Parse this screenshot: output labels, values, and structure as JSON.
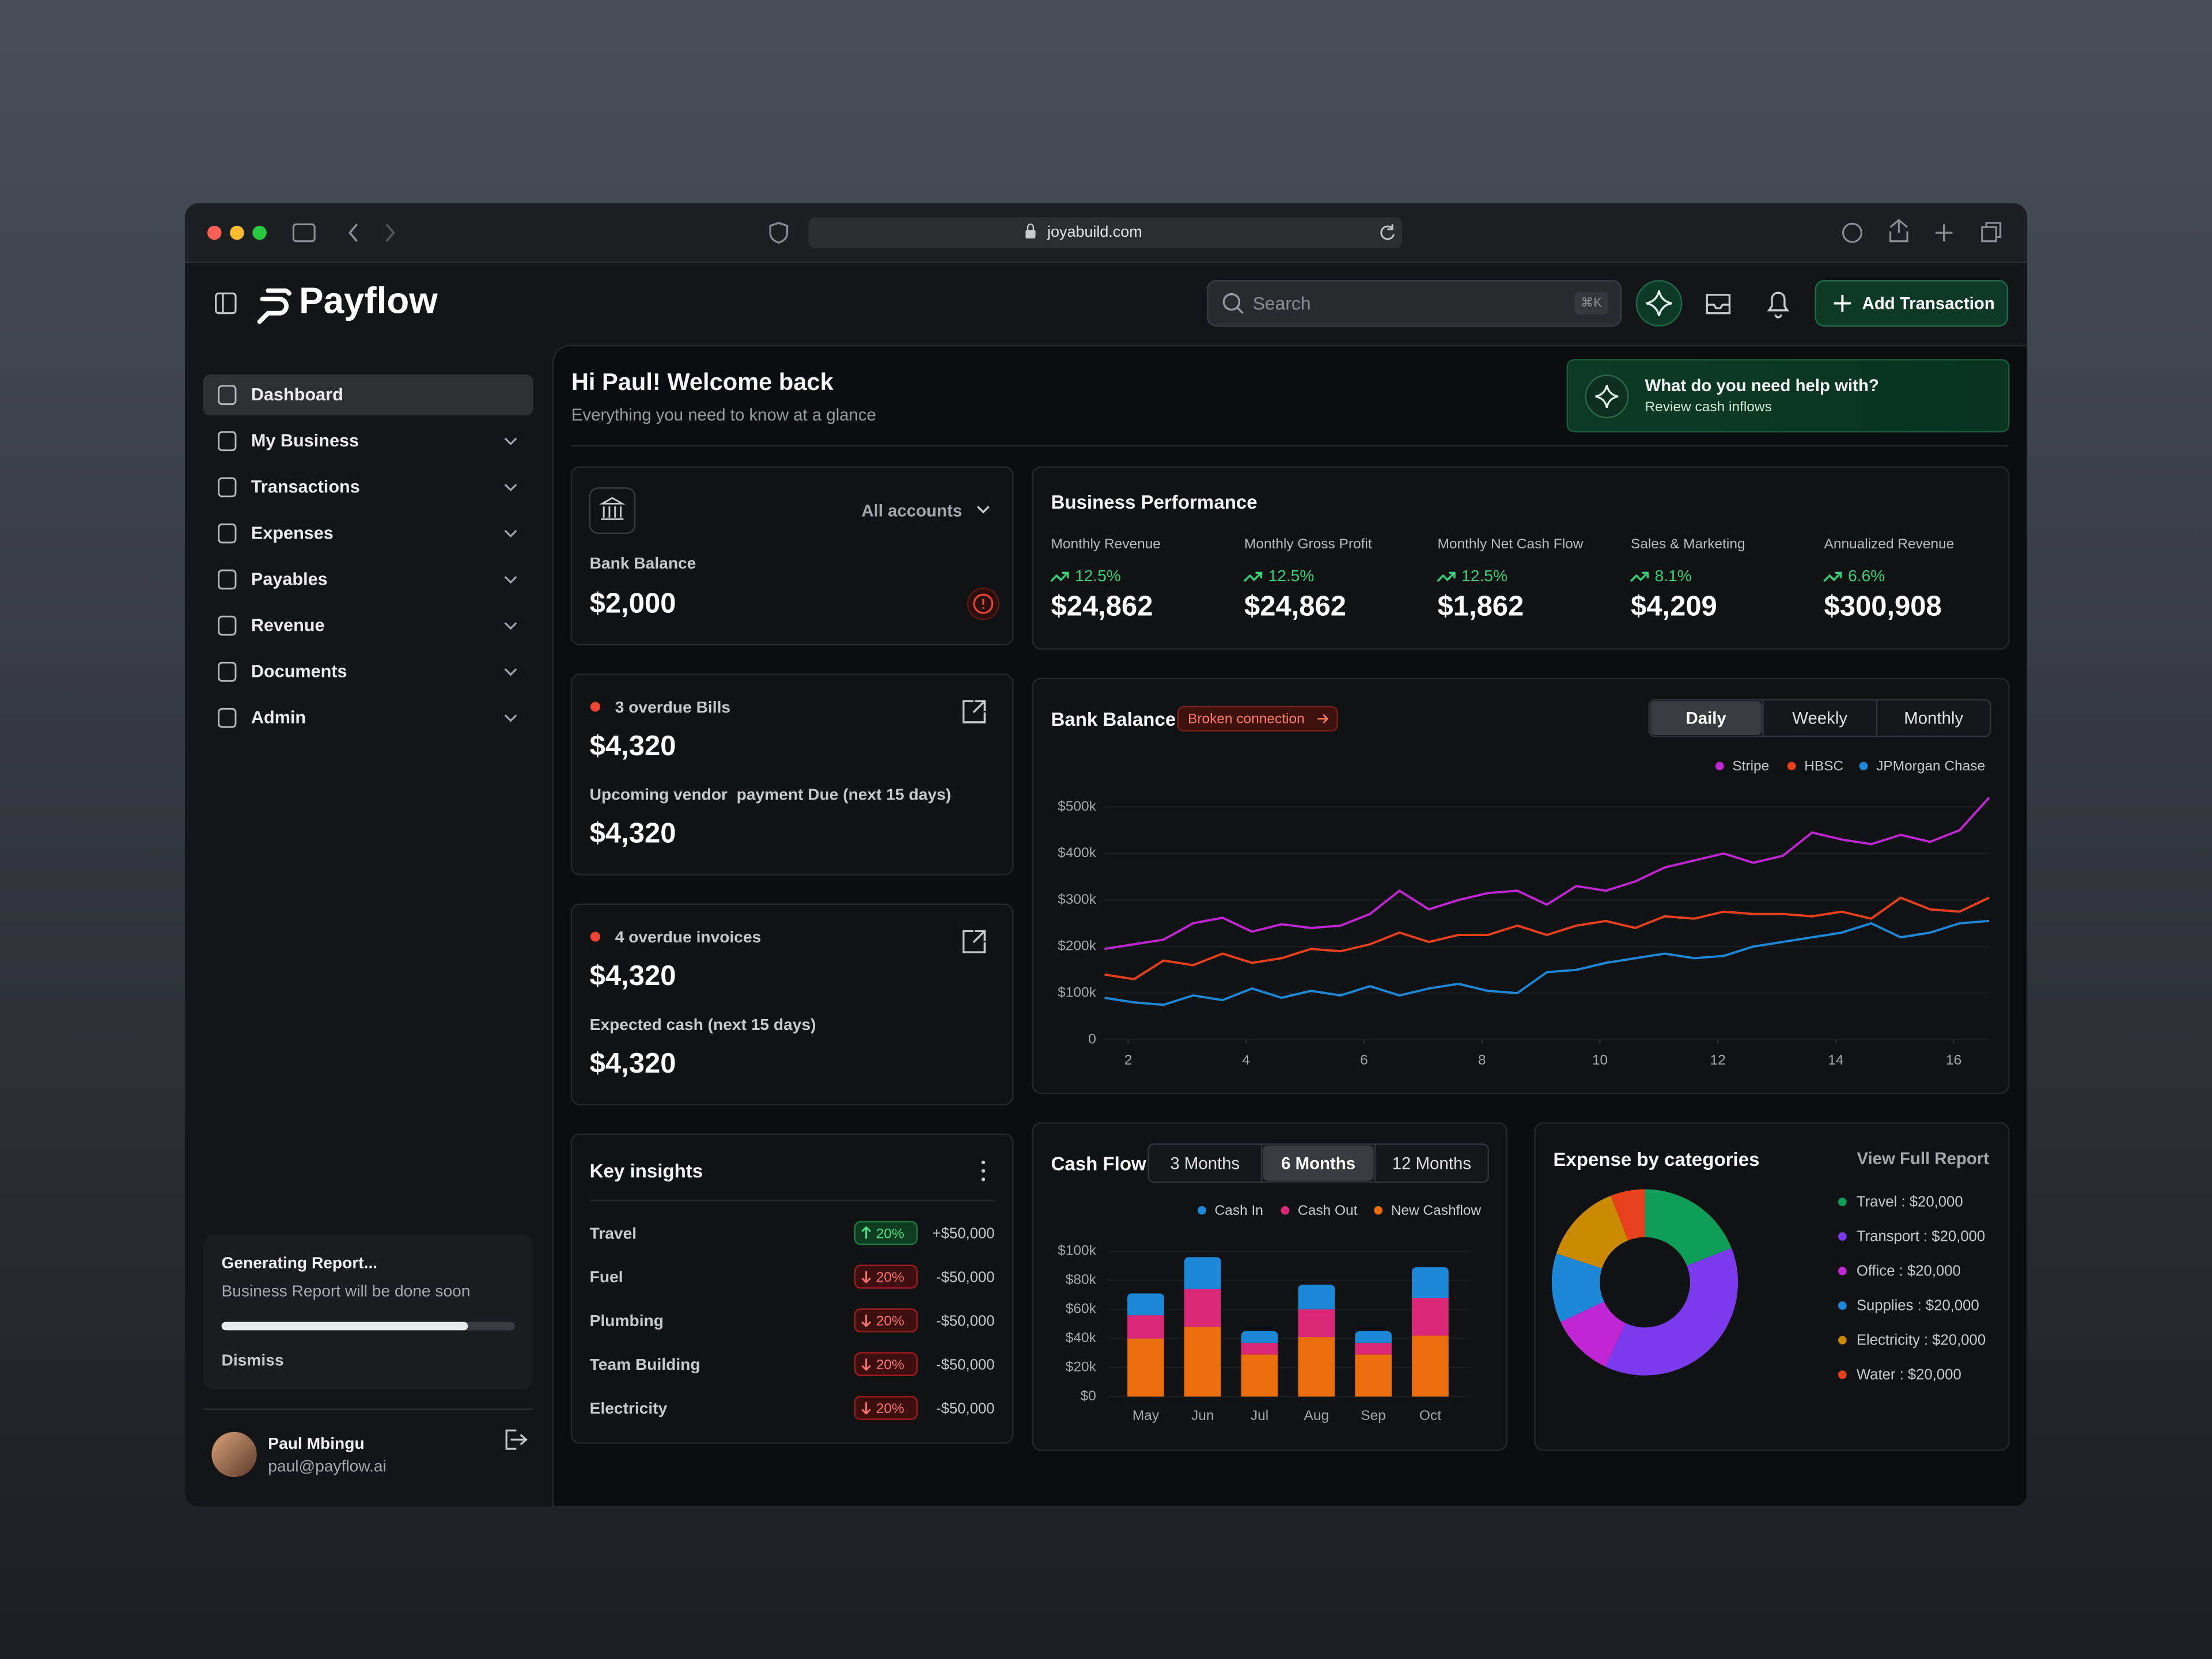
{
  "browser": {
    "url": "joyabuild.com"
  },
  "header": {
    "logo": "Payflow",
    "search": "Search",
    "shortcut": "⌘K",
    "add_button": "Add Transaction"
  },
  "nav": {
    "active": 0,
    "items": [
      {
        "label": "Dashboard",
        "expandable": false
      },
      {
        "label": "My Business",
        "expandable": true
      },
      {
        "label": "Transactions",
        "expandable": true
      },
      {
        "label": "Expenses",
        "expandable": true
      },
      {
        "label": "Payables",
        "expandable": true
      },
      {
        "label": "Revenue",
        "expandable": true
      },
      {
        "label": "Documents",
        "expandable": true
      },
      {
        "label": "Admin",
        "expandable": true
      }
    ]
  },
  "report": {
    "title": "Generating Report...",
    "text": "Business Report will be done soon",
    "progress": 84,
    "action": "Dismiss"
  },
  "user": {
    "name": "Paul Mbingu",
    "email": "paul@payflow.ai"
  },
  "welcome": {
    "title": "Hi Paul! Welcome back",
    "subtitle": "Everything you need to know at a glance"
  },
  "help": {
    "title": "What do you need help with?",
    "subtitle": "Review cash inflows"
  },
  "bank_card": {
    "account": "All accounts",
    "label": "Bank Balance",
    "value": "$2,000"
  },
  "bills": {
    "title": "3 overdue Bills",
    "value": "$4,320",
    "sub_label": "Upcoming vendor  payment Due (next 15 days)",
    "sub_value": "$4,320"
  },
  "invoices": {
    "title": "4 overdue invoices",
    "value": "$4,320",
    "sub_label": "Expected cash (next 15 days)",
    "sub_value": "$4,320"
  },
  "performance": {
    "title": "Business Performance",
    "metrics": [
      {
        "label": "Monthly Revenue",
        "change": "12.5%",
        "value": "$24,862"
      },
      {
        "label": "Monthly Gross Profit",
        "change": "12.5%",
        "value": "$24,862"
      },
      {
        "label": "Monthly Net Cash Flow",
        "change": "12.5%",
        "value": "$1,862"
      },
      {
        "label": "Sales & Marketing",
        "change": "8.1%",
        "value": "$4,209"
      },
      {
        "label": "Annualized Revenue",
        "change": "6.6%",
        "value": "$300,908"
      }
    ]
  },
  "insights": {
    "title": "Key insights",
    "rows": [
      {
        "name": "Travel",
        "change": "20%",
        "trend": "up",
        "amount": "+$50,000"
      },
      {
        "name": "Fuel",
        "change": "20%",
        "trend": "down",
        "amount": "-$50,000"
      },
      {
        "name": "Plumbing",
        "change": "20%",
        "trend": "down",
        "amount": "-$50,000"
      },
      {
        "name": "Team Building",
        "change": "20%",
        "trend": "down",
        "amount": "-$50,000"
      },
      {
        "name": "Electricity",
        "change": "20%",
        "trend": "down",
        "amount": "-$50,000"
      }
    ]
  },
  "chart_data": [
    {
      "type": "line",
      "title": "Bank Balance",
      "badge": "Broken connection",
      "tabs": [
        "Daily",
        "Weekly",
        "Monthly"
      ],
      "active_tab": 0,
      "x": [
        1.6,
        2.1,
        2.6,
        3.1,
        3.6,
        4.1,
        4.6,
        5.1,
        5.6,
        6.1,
        6.6,
        7.1,
        7.6,
        8.1,
        8.6,
        9.1,
        9.6,
        10.1,
        10.6,
        11.1,
        11.6,
        12.1,
        12.6,
        13.1,
        13.6,
        14.1,
        14.6,
        15.1,
        15.6,
        16.1,
        16.6
      ],
      "xlim": [
        1.6,
        16.6
      ],
      "xticks": [
        2,
        4,
        6,
        8,
        10,
        12,
        14,
        16
      ],
      "ylim": [
        0,
        500000
      ],
      "yticks": [
        0,
        {
          "value": 100000,
          "label": "$100k"
        },
        {
          "value": 200000,
          "label": "$200k"
        },
        {
          "value": 300000,
          "label": "$300k"
        },
        {
          "value": 400000,
          "label": "$400k"
        },
        {
          "value": 500000,
          "label": "$500k"
        }
      ],
      "grid": true,
      "series": [
        {
          "name": "Stripe",
          "color": "#c026d3",
          "values": [
            195000,
            205000,
            215000,
            250000,
            262000,
            232000,
            248000,
            240000,
            245000,
            270000,
            320000,
            280000,
            300000,
            315000,
            320000,
            290000,
            330000,
            320000,
            340000,
            370000,
            385000,
            400000,
            380000,
            395000,
            445000,
            430000,
            420000,
            440000,
            425000,
            450000,
            520000
          ]
        },
        {
          "name": "HBSC",
          "color": "#e8401c",
          "values": [
            140000,
            130000,
            170000,
            160000,
            185000,
            165000,
            175000,
            195000,
            190000,
            205000,
            230000,
            210000,
            225000,
            225000,
            245000,
            225000,
            245000,
            255000,
            240000,
            265000,
            260000,
            275000,
            270000,
            270000,
            265000,
            275000,
            260000,
            305000,
            280000,
            275000,
            305000
          ]
        },
        {
          "name": "JPMorgan Chase",
          "color": "#1e88d8",
          "values": [
            90000,
            80000,
            75000,
            95000,
            85000,
            110000,
            90000,
            105000,
            95000,
            115000,
            95000,
            110000,
            120000,
            105000,
            100000,
            145000,
            150000,
            165000,
            175000,
            185000,
            175000,
            180000,
            200000,
            210000,
            220000,
            230000,
            250000,
            220000,
            230000,
            250000,
            255000
          ]
        }
      ]
    },
    {
      "type": "bar",
      "stacked": true,
      "title": "Cash Flow",
      "tabs": [
        "3 Months",
        "6 Months",
        "12 Months"
      ],
      "active_tab": 1,
      "categories": [
        "May",
        "Jun",
        "Jul",
        "Aug",
        "Sep",
        "Oct"
      ],
      "ylim": [
        0,
        100000
      ],
      "yticks": [
        {
          "value": 0,
          "label": "$0"
        },
        {
          "value": 20000,
          "label": "$20k"
        },
        {
          "value": 40000,
          "label": "$40k"
        },
        {
          "value": 60000,
          "label": "$60k"
        },
        {
          "value": 80000,
          "label": "$80k"
        },
        {
          "value": 100000,
          "label": "$100k"
        }
      ],
      "grid": true,
      "series": [
        {
          "name": "Cash In",
          "color": "#1e88d8",
          "values": [
            15000,
            22000,
            8000,
            17000,
            8000,
            21000
          ]
        },
        {
          "name": "Cash Out",
          "color": "#db2777",
          "values": [
            16000,
            26000,
            8000,
            19000,
            8000,
            26000
          ]
        },
        {
          "name": "New Cashflow",
          "color": "#ea6c0a",
          "values": [
            40000,
            48000,
            29000,
            41000,
            29000,
            42000
          ]
        }
      ]
    },
    {
      "type": "pie",
      "donut": true,
      "title": "Expense by categories",
      "link": "View Full Report",
      "categories": [
        "Travel : $20,000",
        "Transport : $20,000",
        "Office : $20,000",
        "Supplies : $20,000",
        "Electricity : $20,000",
        "Water : $20,000"
      ],
      "values": [
        19,
        38,
        11,
        12,
        14,
        6
      ],
      "colors": [
        "#0f9d58",
        "#7c3aed",
        "#c026d3",
        "#1e88d8",
        "#ca8a04",
        "#e8401c"
      ]
    }
  ]
}
